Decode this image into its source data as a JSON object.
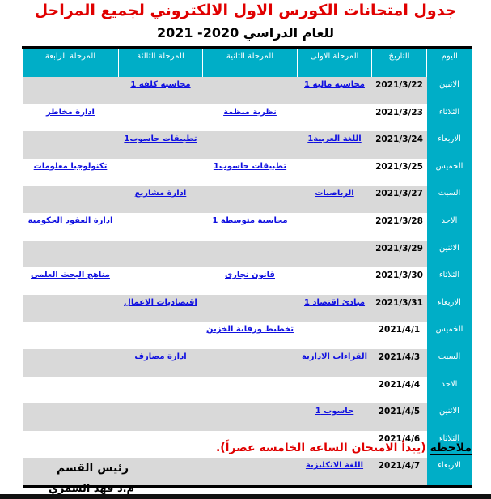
{
  "title": "جدول امتحانات الكورس الاول الالكتروني لجميع المراحل",
  "subtitle": "للعام الدراسي 2020- 2021",
  "colors": {
    "header_bg": "#00aec7",
    "title": "#e00000",
    "link": "#1010e0",
    "row_alt": "#d9d9d9"
  },
  "table": {
    "headers": [
      "اليوم",
      "التاريخ",
      "المرحلة الاولى",
      "المرحلة الثانية",
      "المرحلة الثالثة",
      "المرحلة الرابعة"
    ],
    "rows": [
      {
        "day": "الاثنين",
        "date": "2021/3/22",
        "s1": "محاسبة مالية 1",
        "s2": "",
        "s3": "محاسبة كلفة 1",
        "s4": ""
      },
      {
        "day": "الثلاثاء",
        "date": "2021/3/23",
        "s1": "",
        "s2": "نظرية منظمة",
        "s3": "",
        "s4": "ادارة مخاطر"
      },
      {
        "day": "الاربعاء",
        "date": "2021/3/24",
        "s1": "اللغة العربية1",
        "s2": "",
        "s3": "تطبيقات حاسوب1",
        "s4": ""
      },
      {
        "day": "الخميس",
        "date": "2021/3/25",
        "s1": "",
        "s2": "تطبيقات حاسوب1",
        "s3": "",
        "s4": "تكنولوجيا معلومات"
      },
      {
        "day": "السبت",
        "date": "2021/3/27",
        "s1": "الرياضيات",
        "s2": "",
        "s3": "ادارة مشاريع",
        "s4": ""
      },
      {
        "day": "الاحد",
        "date": "2021/3/28",
        "s1": "",
        "s2": "محاسبة متوسطة 1",
        "s3": "",
        "s4": "ادارة العقود الحكومية"
      },
      {
        "day": "الاثنين",
        "date": "2021/3/29",
        "s1": "",
        "s2": "",
        "s3": "",
        "s4": ""
      },
      {
        "day": "الثلاثاء",
        "date": "2021/3/30",
        "s1": "",
        "s2": "قانون تجاري",
        "s3": "",
        "s4": "مناهج البحث العلمي"
      },
      {
        "day": "الاربعاء",
        "date": "2021/3/31",
        "s1": "مبادئ اقتصاد 1",
        "s2": "",
        "s3": "اقتصاديات الاعمال",
        "s4": ""
      },
      {
        "day": "الخميس",
        "date": "2021/4/1",
        "s1": "",
        "s2": "تخطيط ورقابة الخزين",
        "s3": "",
        "s4": ""
      },
      {
        "day": "السبت",
        "date": "2021/4/3",
        "s1": "القراءات الادارية",
        "s2": "",
        "s3": "ادارة مصارف",
        "s4": ""
      },
      {
        "day": "الاحد",
        "date": "2021/4/4",
        "s1": "",
        "s2": "",
        "s3": "",
        "s4": ""
      },
      {
        "day": "الاثنين",
        "date": "2021/4/5",
        "s1": "حاسوب 1",
        "s2": "",
        "s3": "",
        "s4": ""
      },
      {
        "day": "الثلاثاء",
        "date": "2021/4/6",
        "s1": "",
        "s2": "",
        "s3": "",
        "s4": ""
      },
      {
        "day": "الاربعاء",
        "date": "2021/4/7",
        "s1": "اللغة الانكليزية",
        "s2": "",
        "s3": "",
        "s4": ""
      }
    ]
  },
  "note": {
    "label": "ملاحظة",
    "text": " (يبدأ الامتحان الساعة الخامسة عصراً)."
  },
  "signature": {
    "role": "رئيس القسم",
    "name": "م.د فهد الشمري"
  }
}
